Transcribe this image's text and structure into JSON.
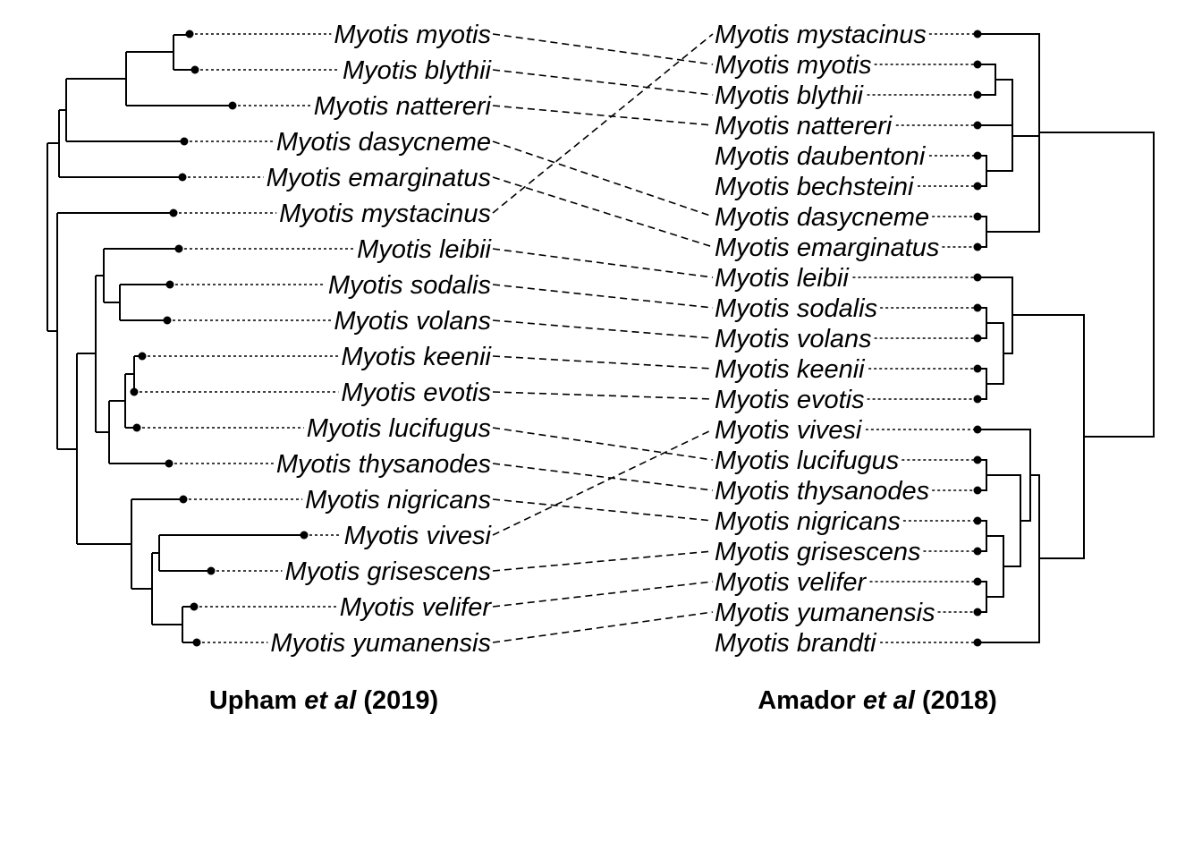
{
  "chart_data": {
    "type": "tanglegram",
    "left_tree": {
      "caption": {
        "author": "Upham",
        "etal": "et al",
        "year": "(2019)"
      },
      "taxa": [
        "Myotis myotis",
        "Myotis blythii",
        "Myotis nattereri",
        "Myotis dasycneme",
        "Myotis emarginatus",
        "Myotis mystacinus",
        "Myotis leibii",
        "Myotis sodalis",
        "Myotis volans",
        "Myotis keenii",
        "Myotis evotis",
        "Myotis lucifugus",
        "Myotis thysanodes",
        "Myotis nigricans",
        "Myotis vivesi",
        "Myotis grisescens",
        "Myotis velifer",
        "Myotis yumanensis"
      ]
    },
    "right_tree": {
      "caption": {
        "author": "Amador",
        "etal": "et al",
        "year": "(2018)"
      },
      "taxa": [
        "Myotis mystacinus",
        "Myotis myotis",
        "Myotis blythii",
        "Myotis nattereri",
        "Myotis daubentoni",
        "Myotis bechsteini",
        "Myotis dasycneme",
        "Myotis emarginatus",
        "Myotis leibii",
        "Myotis sodalis",
        "Myotis volans",
        "Myotis keenii",
        "Myotis evotis",
        "Myotis vivesi",
        "Myotis lucifugus",
        "Myotis thysanodes",
        "Myotis nigricans",
        "Myotis grisescens",
        "Myotis velifer",
        "Myotis yumanensis",
        "Myotis brandti"
      ]
    },
    "links": [
      [
        "Myotis myotis",
        "Myotis myotis"
      ],
      [
        "Myotis blythii",
        "Myotis blythii"
      ],
      [
        "Myotis nattereri",
        "Myotis nattereri"
      ],
      [
        "Myotis dasycneme",
        "Myotis dasycneme"
      ],
      [
        "Myotis emarginatus",
        "Myotis emarginatus"
      ],
      [
        "Myotis mystacinus",
        "Myotis mystacinus"
      ],
      [
        "Myotis leibii",
        "Myotis leibii"
      ],
      [
        "Myotis sodalis",
        "Myotis sodalis"
      ],
      [
        "Myotis volans",
        "Myotis volans"
      ],
      [
        "Myotis keenii",
        "Myotis keenii"
      ],
      [
        "Myotis evotis",
        "Myotis evotis"
      ],
      [
        "Myotis lucifugus",
        "Myotis lucifugus"
      ],
      [
        "Myotis thysanodes",
        "Myotis thysanodes"
      ],
      [
        "Myotis nigricans",
        "Myotis nigricans"
      ],
      [
        "Myotis vivesi",
        "Myotis vivesi"
      ],
      [
        "Myotis grisescens",
        "Myotis grisescens"
      ],
      [
        "Myotis velifer",
        "Myotis velifer"
      ],
      [
        "Myotis yumanensis",
        "Myotis yumanensis"
      ]
    ]
  }
}
